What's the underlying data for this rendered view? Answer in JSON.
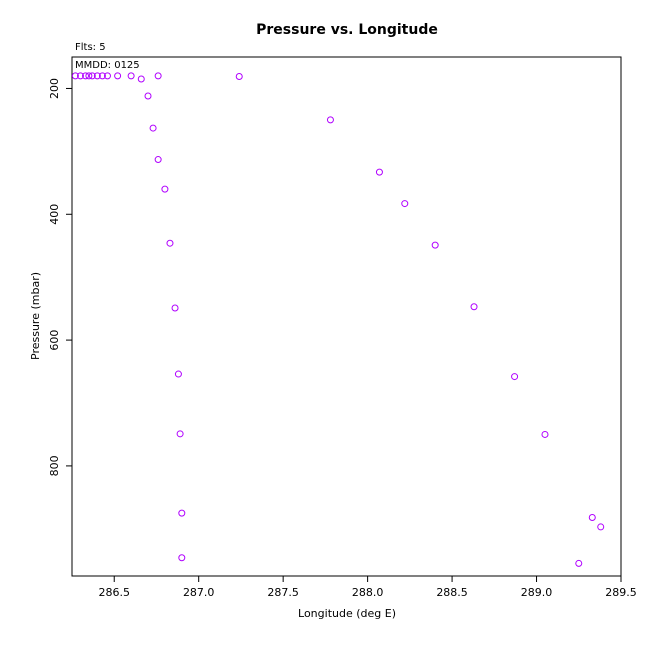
{
  "chart_data": {
    "type": "scatter",
    "title": "Pressure vs. Longitude",
    "xlabel": "Longitude (deg E)",
    "ylabel": "Pressure (mbar)",
    "annotations": [
      "Flts: 5",
      "MMDD: 0125"
    ],
    "xlim": [
      286.25,
      289.5
    ],
    "ylim": [
      975,
      150
    ],
    "y_inverted": true,
    "grid": false,
    "marker": "open-circle",
    "color": "#b000ff",
    "xticks": [
      286.5,
      287.0,
      287.5,
      288.0,
      288.5,
      289.0,
      289.5
    ],
    "xtick_labels": [
      "286.5",
      "287.0",
      "287.5",
      "288.0",
      "288.5",
      "289.0",
      "289.5"
    ],
    "yticks": [
      200,
      400,
      600,
      800
    ],
    "ytick_labels": [
      "200",
      "400",
      "600",
      "800"
    ],
    "points": [
      {
        "x": 286.27,
        "y": 180
      },
      {
        "x": 286.3,
        "y": 180
      },
      {
        "x": 286.33,
        "y": 180
      },
      {
        "x": 286.35,
        "y": 180
      },
      {
        "x": 286.37,
        "y": 180
      },
      {
        "x": 286.4,
        "y": 180
      },
      {
        "x": 286.43,
        "y": 180
      },
      {
        "x": 286.46,
        "y": 180
      },
      {
        "x": 286.52,
        "y": 180
      },
      {
        "x": 286.6,
        "y": 180
      },
      {
        "x": 286.66,
        "y": 185
      },
      {
        "x": 286.76,
        "y": 180
      },
      {
        "x": 286.7,
        "y": 212
      },
      {
        "x": 286.73,
        "y": 263
      },
      {
        "x": 286.76,
        "y": 313
      },
      {
        "x": 286.8,
        "y": 360
      },
      {
        "x": 286.83,
        "y": 446
      },
      {
        "x": 286.86,
        "y": 549
      },
      {
        "x": 286.88,
        "y": 654
      },
      {
        "x": 286.89,
        "y": 749
      },
      {
        "x": 286.9,
        "y": 875
      },
      {
        "x": 286.9,
        "y": 946
      },
      {
        "x": 287.24,
        "y": 181
      },
      {
        "x": 287.78,
        "y": 250
      },
      {
        "x": 288.07,
        "y": 333
      },
      {
        "x": 288.22,
        "y": 383
      },
      {
        "x": 288.4,
        "y": 449
      },
      {
        "x": 288.63,
        "y": 547
      },
      {
        "x": 288.87,
        "y": 658
      },
      {
        "x": 289.05,
        "y": 750
      },
      {
        "x": 289.33,
        "y": 882
      },
      {
        "x": 289.38,
        "y": 897
      },
      {
        "x": 289.25,
        "y": 955
      }
    ]
  }
}
